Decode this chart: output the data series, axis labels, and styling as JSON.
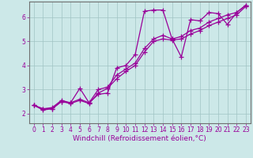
{
  "xlabel": "Windchill (Refroidissement éolien,°C)",
  "bg_color": "#cce8e8",
  "grid_color": "#a0c4c4",
  "line_color": "#990099",
  "xlim": [
    -0.5,
    23.5
  ],
  "ylim": [
    1.6,
    6.65
  ],
  "yticks": [
    2,
    3,
    4,
    5,
    6
  ],
  "xticks": [
    0,
    1,
    2,
    3,
    4,
    5,
    6,
    7,
    8,
    9,
    10,
    11,
    12,
    13,
    14,
    15,
    16,
    17,
    18,
    19,
    20,
    21,
    22,
    23
  ],
  "series1_x": [
    0,
    1,
    2,
    3,
    4,
    5,
    6,
    7,
    8,
    9,
    10,
    11,
    12,
    13,
    14,
    15,
    16,
    17,
    18,
    19,
    20,
    21,
    22,
    23
  ],
  "series1_y": [
    2.35,
    2.15,
    2.2,
    2.5,
    2.45,
    3.05,
    2.45,
    2.8,
    2.85,
    3.9,
    4.0,
    4.45,
    6.25,
    6.3,
    6.3,
    5.1,
    4.35,
    5.9,
    5.85,
    6.2,
    6.15,
    5.7,
    6.2,
    6.5
  ],
  "series2_x": [
    0,
    1,
    2,
    3,
    4,
    5,
    6,
    7,
    8,
    9,
    10,
    11,
    12,
    13,
    14,
    15,
    16,
    17,
    18,
    19,
    20,
    21,
    22,
    23
  ],
  "series2_y": [
    2.35,
    2.2,
    2.25,
    2.55,
    2.45,
    2.6,
    2.45,
    3.0,
    3.1,
    3.6,
    3.85,
    4.1,
    4.7,
    5.1,
    5.25,
    5.1,
    5.2,
    5.45,
    5.55,
    5.8,
    5.95,
    6.1,
    6.2,
    6.5
  ],
  "series3_x": [
    0,
    1,
    2,
    3,
    4,
    5,
    6,
    7,
    8,
    9,
    10,
    11,
    12,
    13,
    14,
    15,
    16,
    17,
    18,
    19,
    20,
    21,
    22,
    23
  ],
  "series3_y": [
    2.35,
    2.2,
    2.2,
    2.5,
    2.42,
    2.55,
    2.42,
    2.85,
    3.05,
    3.45,
    3.75,
    4.0,
    4.55,
    5.0,
    5.1,
    5.05,
    5.1,
    5.3,
    5.45,
    5.65,
    5.8,
    5.95,
    6.1,
    6.45
  ],
  "marker": "+",
  "markersize": 4,
  "linewidth": 0.9,
  "tick_fontsize": 5.5,
  "label_fontsize": 6.5
}
